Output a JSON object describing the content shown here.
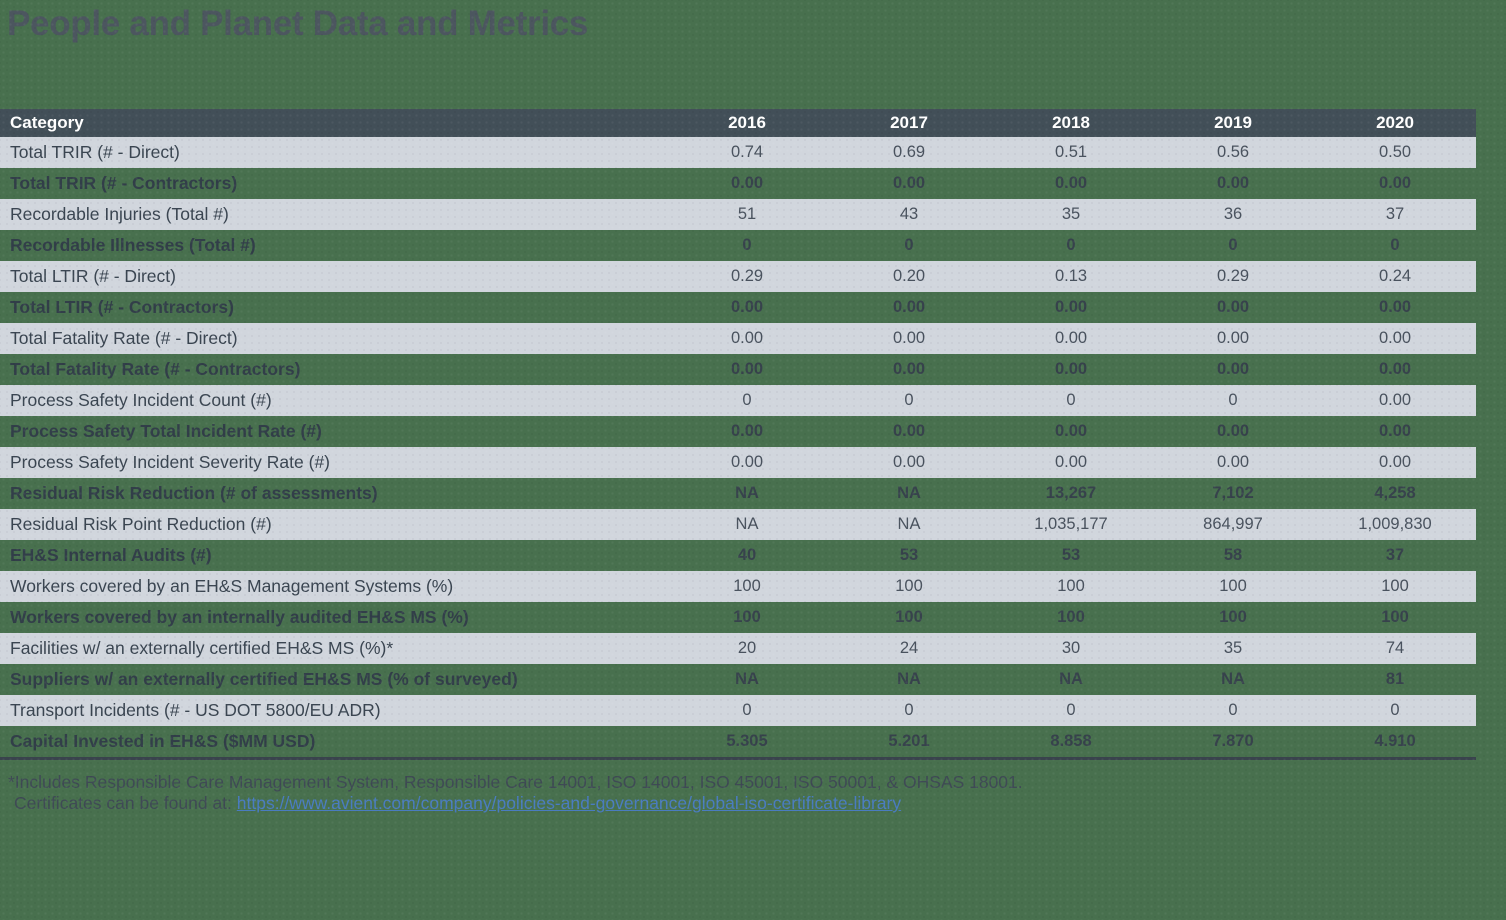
{
  "title": "People and Planet Data and Metrics",
  "table": {
    "columns": [
      "Category",
      "2016",
      "2017",
      "2018",
      "2019",
      "2020"
    ],
    "rows": [
      {
        "label": "Total TRIR (# - Direct)",
        "values": [
          "0.74",
          "0.69",
          "0.51",
          "0.56",
          "0.50"
        ]
      },
      {
        "label": "Total TRIR (# - Contractors)",
        "values": [
          "0.00",
          "0.00",
          "0.00",
          "0.00",
          "0.00"
        ]
      },
      {
        "label": "Recordable Injuries (Total #)",
        "values": [
          "51",
          "43",
          "35",
          "36",
          "37"
        ]
      },
      {
        "label": "Recordable Illnesses (Total #)",
        "values": [
          "0",
          "0",
          "0",
          "0",
          "0"
        ]
      },
      {
        "label": "Total LTIR (# - Direct)",
        "values": [
          "0.29",
          "0.20",
          "0.13",
          "0.29",
          "0.24"
        ]
      },
      {
        "label": "Total LTIR (# - Contractors)",
        "values": [
          "0.00",
          "0.00",
          "0.00",
          "0.00",
          "0.00"
        ]
      },
      {
        "label": "Total Fatality Rate (# - Direct)",
        "values": [
          "0.00",
          "0.00",
          "0.00",
          "0.00",
          "0.00"
        ]
      },
      {
        "label": "Total Fatality Rate (# - Contractors)",
        "values": [
          "0.00",
          "0.00",
          "0.00",
          "0.00",
          "0.00"
        ]
      },
      {
        "label": "Process Safety Incident Count (#)",
        "values": [
          "0",
          "0",
          "0",
          "0",
          "0.00"
        ]
      },
      {
        "label": "Process Safety Total Incident Rate (#)",
        "values": [
          "0.00",
          "0.00",
          "0.00",
          "0.00",
          "0.00"
        ]
      },
      {
        "label": "Process Safety Incident Severity Rate (#)",
        "values": [
          "0.00",
          "0.00",
          "0.00",
          "0.00",
          "0.00"
        ]
      },
      {
        "label": "Residual Risk Reduction (# of assessments)",
        "values": [
          "NA",
          "NA",
          "13,267",
          "7,102",
          "4,258"
        ]
      },
      {
        "label": "Residual Risk Point Reduction (#)",
        "values": [
          "NA",
          "NA",
          "1,035,177",
          "864,997",
          "1,009,830"
        ]
      },
      {
        "label": "EH&S Internal Audits (#)",
        "values": [
          "40",
          "53",
          "53",
          "58",
          "37"
        ]
      },
      {
        "label": "Workers covered by an EH&S Management Systems (%)",
        "values": [
          "100",
          "100",
          "100",
          "100",
          "100"
        ]
      },
      {
        "label": "Workers covered by an internally audited EH&S MS (%)",
        "values": [
          "100",
          "100",
          "100",
          "100",
          "100"
        ]
      },
      {
        "label": "Facilities w/ an externally certified EH&S MS (%)*",
        "values": [
          "20",
          "24",
          "30",
          "35",
          "74"
        ]
      },
      {
        "label": "Suppliers w/ an externally certified EH&S MS (% of surveyed)",
        "values": [
          "NA",
          "NA",
          "NA",
          "NA",
          "81"
        ]
      },
      {
        "label": "Transport Incidents (# - US DOT 5800/EU ADR)",
        "values": [
          "0",
          "0",
          "0",
          "0",
          "0"
        ]
      },
      {
        "label": "Capital Invested in EH&S ($MM USD)",
        "values": [
          "5.305",
          "5.201",
          "8.858",
          "7.870",
          "4.910"
        ]
      }
    ]
  },
  "footnote": {
    "line1": "*Includes Responsible Care Management System, Responsible Care 14001, ISO 14001, ISO 45001, ISO 50001, & OHSAS 18001.",
    "link_prefix": "Certificates can be found at: ",
    "link_text": "https://www.avient.com/company/policies-and-governance/global-iso-certificate-library"
  },
  "colors": {
    "background_green": "#48704E",
    "header_slate": "#424F58",
    "row_gray": "#D1D6DD",
    "link_blue": "#4A7CC0"
  }
}
